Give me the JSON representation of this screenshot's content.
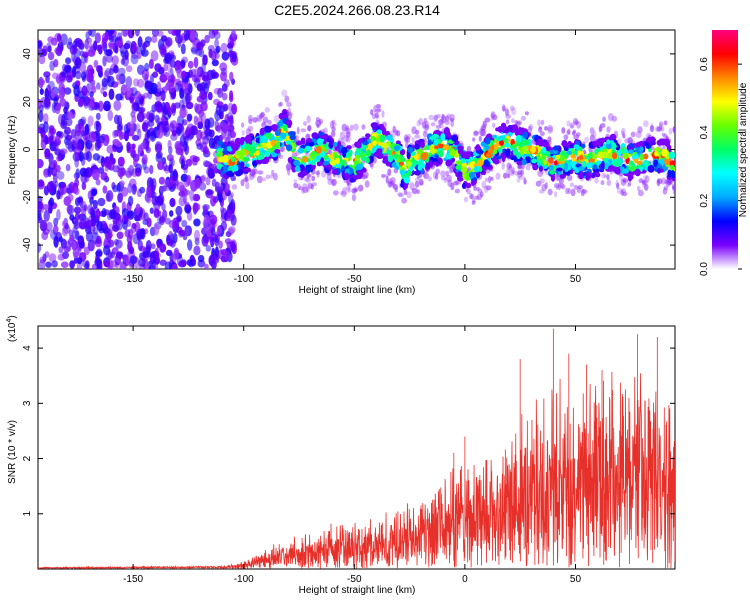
{
  "chart_data": [
    {
      "type": "heatmap",
      "title": "C2E5.2024.266.08.23.R14",
      "xlabel": "Height of straight line (km)",
      "ylabel": "Frequency (Hz)",
      "xlim": [
        -193,
        95
      ],
      "ylim": [
        -50,
        50
      ],
      "xticks": [
        -150,
        -100,
        -50,
        0,
        50
      ],
      "yticks": [
        -40,
        -20,
        0,
        20,
        40
      ],
      "ridge_x": [
        -110,
        -105,
        -100,
        -95,
        -90,
        -85,
        -82,
        -78,
        -75,
        -70,
        -65,
        -60,
        -55,
        -50,
        -45,
        -40,
        -35,
        -30,
        -27,
        -25,
        -20,
        -15,
        -10,
        -5,
        0,
        5,
        10,
        15,
        20,
        25,
        30,
        35,
        40,
        45,
        50,
        55,
        60,
        65,
        70,
        75,
        80,
        85,
        90,
        94
      ],
      "ridge_freq": [
        -3,
        -5,
        -2,
        -1,
        2,
        3,
        10,
        0,
        -4,
        -2,
        0,
        -3,
        -5,
        -6,
        -2,
        5,
        1,
        -3,
        -10,
        -6,
        -3,
        0,
        2,
        -1,
        -9,
        -7,
        -2,
        2,
        4,
        1,
        0,
        -3,
        -6,
        -4,
        -3,
        -5,
        -4,
        -1,
        -3,
        -5,
        -4,
        -2,
        -3,
        -6
      ],
      "colorbar": {
        "label": "Normalized spectral amplitude",
        "ticks": [
          0.0,
          0.2,
          0.4,
          0.6
        ],
        "range": [
          0,
          0.7
        ],
        "colors": [
          "#ffffff",
          "#7a00ff",
          "#0000ff",
          "#00aaff",
          "#00ffff",
          "#00ff66",
          "#66ff00",
          "#ffff00",
          "#ff8800",
          "#ff0000",
          "#ff0080"
        ]
      }
    },
    {
      "type": "line",
      "xlabel": "Height of straight line (km)",
      "ylabel": "SNR (10 * v/v)",
      "y_multiplier": "(x10",
      "y_multiplier_exp": "4",
      "y_multiplier_close": ")",
      "xlim": [
        -193,
        95
      ],
      "ylim": [
        0,
        4.4
      ],
      "xticks": [
        -150,
        -100,
        -50,
        0,
        50
      ],
      "yticks": [
        1,
        2,
        3,
        4
      ],
      "color": "#e8302a",
      "envelope_x": [
        -193,
        -110,
        -100,
        -90,
        -80,
        -70,
        -60,
        -50,
        -40,
        -30,
        -20,
        -10,
        0,
        10,
        20,
        25,
        30,
        40,
        50,
        60,
        70,
        80,
        90,
        95
      ],
      "envelope_y": [
        0.03,
        0.05,
        0.15,
        0.4,
        0.55,
        0.7,
        0.85,
        0.9,
        1.0,
        1.2,
        1.5,
        1.8,
        2.2,
        2.3,
        2.5,
        3.0,
        3.2,
        3.5,
        3.6,
        3.7,
        3.8,
        3.9,
        3.6,
        3.5
      ],
      "peaks": [
        [
          25,
          3.8
        ],
        [
          40,
          4.35
        ],
        [
          47,
          3.9
        ],
        [
          55,
          3.7
        ],
        [
          62,
          3.6
        ],
        [
          78,
          4.25
        ],
        [
          87,
          4.2
        ],
        [
          0,
          2.4
        ],
        [
          -5,
          2.1
        ]
      ]
    }
  ]
}
